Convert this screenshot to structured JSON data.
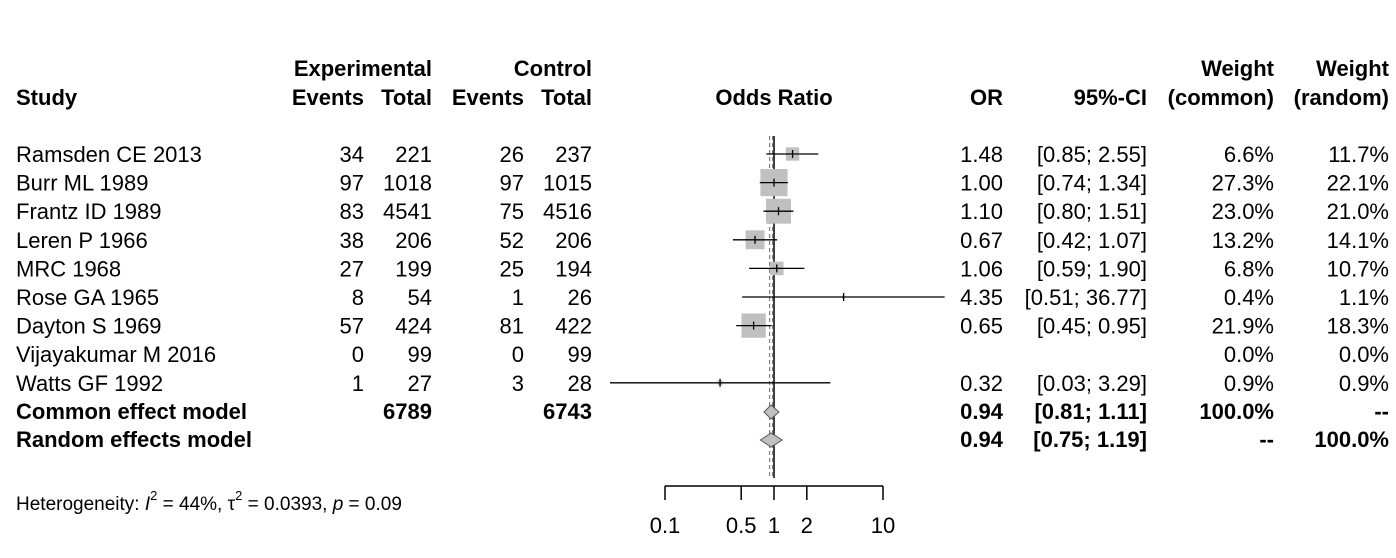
{
  "chart_data": {
    "type": "forest",
    "headers": {
      "study": "Study",
      "experimental": "Experimental",
      "control": "Control",
      "events": "Events",
      "total": "Total",
      "odds_ratio": "Odds Ratio",
      "or": "OR",
      "ci": "95%-CI",
      "weight": "Weight",
      "common": "(common)",
      "random": "(random)"
    },
    "studies": [
      {
        "name": "Ramsden CE 2013",
        "e_events": "34",
        "e_total": "221",
        "c_events": "26",
        "c_total": "237",
        "or_text": "1.48",
        "ci_text": "[0.85; 2.55]",
        "w_common": "6.6%",
        "w_random": "11.7%",
        "or": 1.48,
        "lower": 0.85,
        "upper": 2.55,
        "weight_common": 6.6
      },
      {
        "name": "Burr ML 1989",
        "e_events": "97",
        "e_total": "1018",
        "c_events": "97",
        "c_total": "1015",
        "or_text": "1.00",
        "ci_text": "[0.74; 1.34]",
        "w_common": "27.3%",
        "w_random": "22.1%",
        "or": 1.0,
        "lower": 0.74,
        "upper": 1.34,
        "weight_common": 27.3
      },
      {
        "name": "Frantz ID 1989",
        "e_events": "83",
        "e_total": "4541",
        "c_events": "75",
        "c_total": "4516",
        "or_text": "1.10",
        "ci_text": "[0.80; 1.51]",
        "w_common": "23.0%",
        "w_random": "21.0%",
        "or": 1.1,
        "lower": 0.8,
        "upper": 1.51,
        "weight_common": 23.0
      },
      {
        "name": "Leren P 1966",
        "e_events": "38",
        "e_total": "206",
        "c_events": "52",
        "c_total": "206",
        "or_text": "0.67",
        "ci_text": "[0.42; 1.07]",
        "w_common": "13.2%",
        "w_random": "14.1%",
        "or": 0.67,
        "lower": 0.42,
        "upper": 1.07,
        "weight_common": 13.2
      },
      {
        "name": "MRC 1968",
        "e_events": "27",
        "e_total": "199",
        "c_events": "25",
        "c_total": "194",
        "or_text": "1.06",
        "ci_text": "[0.59; 1.90]",
        "w_common": "6.8%",
        "w_random": "10.7%",
        "or": 1.06,
        "lower": 0.59,
        "upper": 1.9,
        "weight_common": 6.8
      },
      {
        "name": "Rose GA 1965",
        "e_events": "8",
        "e_total": "54",
        "c_events": "1",
        "c_total": "26",
        "or_text": "4.35",
        "ci_text": "[0.51; 36.77]",
        "w_common": "0.4%",
        "w_random": "1.1%",
        "or": 4.35,
        "lower": 0.51,
        "upper": 36.77,
        "weight_common": 0.4
      },
      {
        "name": "Dayton S 1969",
        "e_events": "57",
        "e_total": "424",
        "c_events": "81",
        "c_total": "422",
        "or_text": "0.65",
        "ci_text": "[0.45; 0.95]",
        "w_common": "21.9%",
        "w_random": "18.3%",
        "or": 0.65,
        "lower": 0.45,
        "upper": 0.95,
        "weight_common": 21.9
      },
      {
        "name": "Vijayakumar M 2016",
        "e_events": "0",
        "e_total": "99",
        "c_events": "0",
        "c_total": "99",
        "or_text": "",
        "ci_text": "",
        "w_common": "0.0%",
        "w_random": "0.0%",
        "or": null,
        "lower": null,
        "upper": null,
        "weight_common": 0.0
      },
      {
        "name": "Watts GF 1992",
        "e_events": "1",
        "e_total": "27",
        "c_events": "3",
        "c_total": "28",
        "or_text": "0.32",
        "ci_text": "[0.03; 3.29]",
        "w_common": "0.9%",
        "w_random": "0.9%",
        "or": 0.32,
        "lower": 0.03,
        "upper": 3.29,
        "weight_common": 0.9
      }
    ],
    "models": [
      {
        "name": "Common effect model",
        "e_total": "6789",
        "c_total": "6743",
        "or_text": "0.94",
        "ci_text": "[0.81; 1.11]",
        "w_common": "100.0%",
        "w_random": "--",
        "or": 0.94,
        "lower": 0.81,
        "upper": 1.11
      },
      {
        "name": "Random effects model",
        "e_total": "",
        "c_total": "",
        "or_text": "0.94",
        "ci_text": "[0.75; 1.19]",
        "w_common": "--",
        "w_random": "100.0%",
        "or": 0.94,
        "lower": 0.75,
        "upper": 1.19
      }
    ],
    "heterogeneity": {
      "prefix": "Heterogeneity: ",
      "i_label": "I",
      "i_value": " = 44%, ",
      "tau_label": "τ",
      "tau_value": " = 0.0393, ",
      "p_label": "p",
      "p_value": " = 0.09",
      "superscript": "2"
    },
    "x_axis": {
      "scale": "log",
      "ticks": [
        0.1,
        0.5,
        1,
        2,
        10
      ],
      "tick_labels": [
        "0.1",
        "0.5",
        "1",
        "2",
        "10"
      ],
      "range": [
        0.1,
        10
      ],
      "reference_line": 1
    },
    "colors": {
      "square": "#c0c0c0",
      "diamond": "#c0c0c0",
      "line": "#000000",
      "pooled_line": "#808080"
    }
  }
}
